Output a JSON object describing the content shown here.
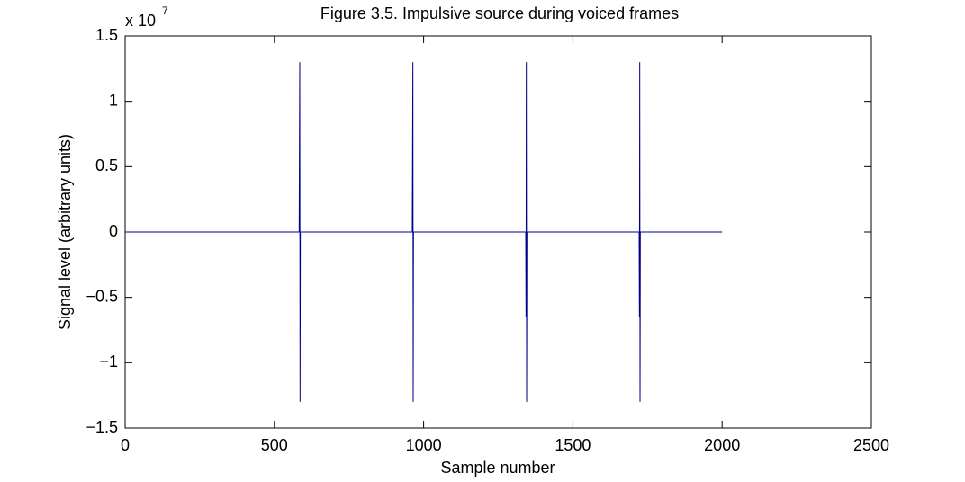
{
  "chart_data": {
    "type": "line",
    "title": "Figure 3.5. Impulsive source during voiced frames",
    "x_label": "Sample number",
    "y_label": "Signal level (arbitrary units)",
    "y_scale_label": {
      "base": "x 10",
      "exponent": "7"
    },
    "series": [
      {
        "color": "#00008b",
        "x": [
          1,
          583,
          584,
          585,
          586,
          587,
          962,
          963,
          964,
          965,
          966,
          1342,
          1343,
          1344,
          1345,
          1346,
          1722,
          1723,
          1724,
          1725,
          1726,
          2000
        ],
        "values": [
          0,
          0,
          0.65,
          1.3,
          -1.3,
          0,
          0,
          0.65,
          1.3,
          -1.3,
          0,
          0,
          -0.65,
          1.3,
          -1.3,
          0,
          0,
          -0.65,
          1.3,
          -1.3,
          0,
          0
        ]
      }
    ],
    "xlim": [
      0,
      2500
    ],
    "xticks": [
      0,
      500,
      1000,
      1500,
      2000,
      2500
    ],
    "ylim": [
      -1.5,
      1.5
    ],
    "yticks": [
      {
        "value": -1.5,
        "label": "−1.5"
      },
      {
        "value": -1,
        "label": "−1"
      },
      {
        "value": -0.5,
        "label": "−0.5"
      },
      0,
      0.5,
      1,
      1.5
    ],
    "grid": false
  }
}
